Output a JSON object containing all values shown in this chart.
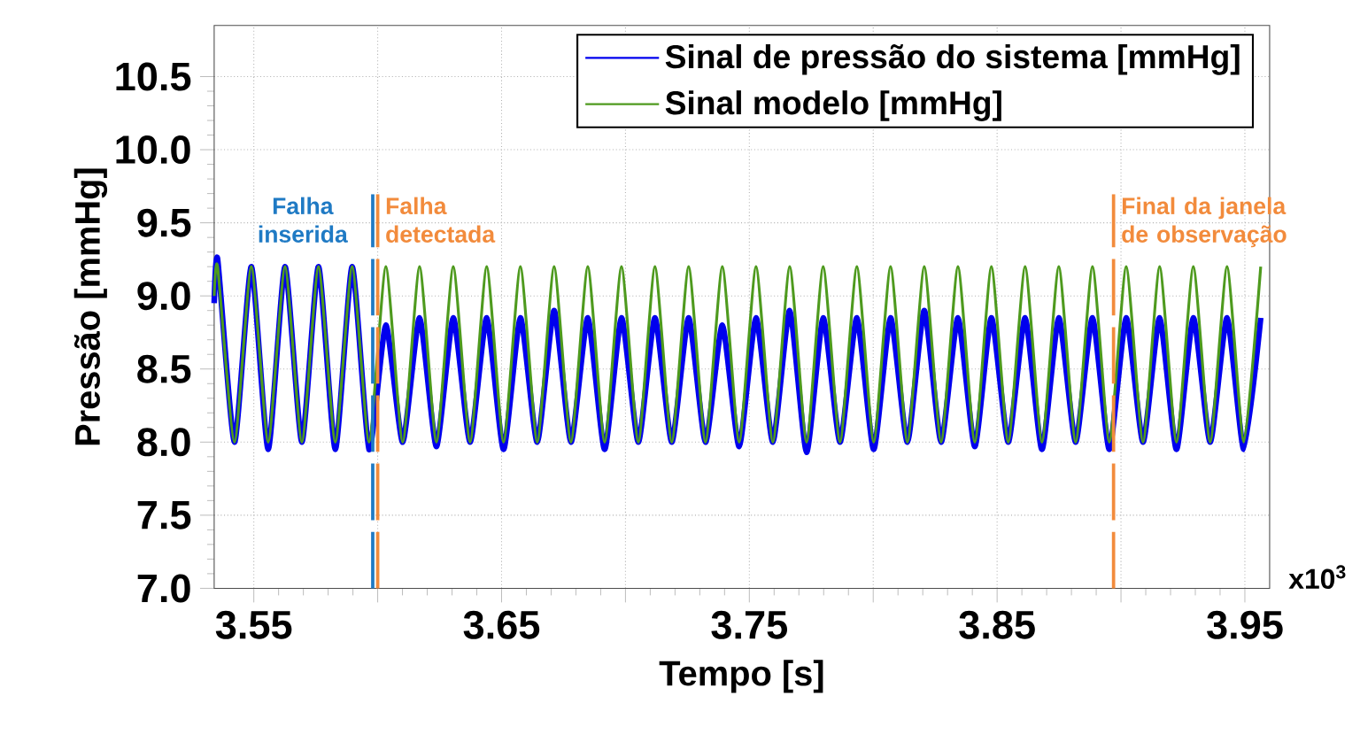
{
  "chart_data": {
    "type": "line",
    "xlabel": "Tempo [s]",
    "ylabel": "Pressão [mmHg]",
    "x": [
      3.534,
      3.5354,
      3.5422,
      3.549,
      3.5558,
      3.5626,
      3.5694,
      3.5761,
      3.5829,
      3.5897,
      3.5965,
      3.6033,
      3.6101,
      3.6169,
      3.6237,
      3.6305,
      3.6373,
      3.644,
      3.6508,
      3.6576,
      3.6644,
      3.6712,
      3.678,
      3.6848,
      3.6916,
      3.6984,
      3.7052,
      3.7119,
      3.7187,
      3.7255,
      3.7323,
      3.7391,
      3.7459,
      3.7527,
      3.7595,
      3.7663,
      3.7731,
      3.7798,
      3.7866,
      3.7934,
      3.8002,
      3.807,
      3.8138,
      3.8206,
      3.8274,
      3.8342,
      3.841,
      3.8477,
      3.8545,
      3.8613,
      3.8681,
      3.8749,
      3.8817,
      3.8885,
      3.8953,
      3.9021,
      3.9089,
      3.9156,
      3.9224,
      3.9292,
      3.936,
      3.9428,
      3.9496,
      3.9564
    ],
    "series": [
      {
        "name": "Sinal de pressão do sistema [mmHg]",
        "color": "#0000ee",
        "values": [
          8.95,
          9.25,
          8.0,
          9.2,
          7.95,
          9.2,
          8.0,
          9.2,
          7.95,
          9.2,
          7.95,
          8.8,
          8.0,
          8.85,
          7.97,
          8.85,
          8.0,
          8.85,
          7.95,
          8.85,
          8.0,
          8.9,
          8.0,
          8.85,
          7.95,
          8.85,
          8.0,
          8.85,
          8.0,
          8.85,
          8.0,
          8.8,
          7.97,
          8.85,
          8.0,
          8.9,
          7.93,
          8.85,
          8.0,
          8.85,
          7.95,
          8.85,
          8.0,
          8.9,
          8.0,
          8.85,
          7.97,
          8.85,
          8.0,
          8.85,
          7.95,
          8.85,
          8.0,
          8.85,
          7.95,
          8.85,
          8.0,
          8.85,
          7.95,
          8.85,
          8.0,
          8.85,
          7.95,
          8.85
        ]
      },
      {
        "name": "Sinal modelo [mmHg]",
        "color": "#4e9a1e",
        "values": [
          9.0,
          9.2,
          8.0,
          9.2,
          8.0,
          9.2,
          8.0,
          9.2,
          8.0,
          9.2,
          8.0,
          9.2,
          8.0,
          9.2,
          8.0,
          9.2,
          8.0,
          9.2,
          8.0,
          9.2,
          8.0,
          9.2,
          8.0,
          9.2,
          8.0,
          9.2,
          8.0,
          9.2,
          8.0,
          9.2,
          8.0,
          9.2,
          8.0,
          9.2,
          8.0,
          9.2,
          8.0,
          9.2,
          8.0,
          9.2,
          8.0,
          9.2,
          8.0,
          9.2,
          8.0,
          9.2,
          8.0,
          9.2,
          8.0,
          9.2,
          8.0,
          9.2,
          8.0,
          9.2,
          8.0,
          9.2,
          8.0,
          9.2,
          8.0,
          9.2,
          8.0,
          9.2,
          8.0,
          9.2
        ]
      }
    ],
    "xlim": [
      3.534,
      3.96
    ],
    "ylim": [
      7.0,
      10.85
    ],
    "xticks": [
      3.55,
      {
        "value": 3.6,
        "label": null
      },
      3.65,
      {
        "value": 3.7,
        "label": null
      },
      3.75,
      {
        "value": 3.8,
        "label": null
      },
      3.85,
      {
        "value": 3.9,
        "label": null
      },
      3.95
    ],
    "yticks": [
      {
        "value": 7,
        "label": "7.0"
      },
      7.5,
      {
        "value": 8,
        "label": "8.0"
      },
      8.5,
      {
        "value": 9,
        "label": "9.0"
      },
      9.5,
      {
        "value": 10,
        "label": "10.0"
      },
      10.5
    ],
    "ref_lines": [
      {
        "axis": "x",
        "value": 3.598,
        "label": "Falha inserida",
        "color": "#1f7ac4",
        "line_style": "dashed"
      },
      {
        "axis": "x",
        "value": 3.6,
        "label": "Falha detectada",
        "color": "#f28b3c",
        "line_style": "dashed"
      },
      {
        "axis": "x",
        "value": 3.897,
        "label": "Final da janela de observação",
        "color": "#f28b3c",
        "line_style": "dashed"
      }
    ],
    "annotations": [
      "x10$^{3}$"
    ],
    "grid": true,
    "legend": "top right",
    "marker": "none",
    "line_style": "solid"
  }
}
